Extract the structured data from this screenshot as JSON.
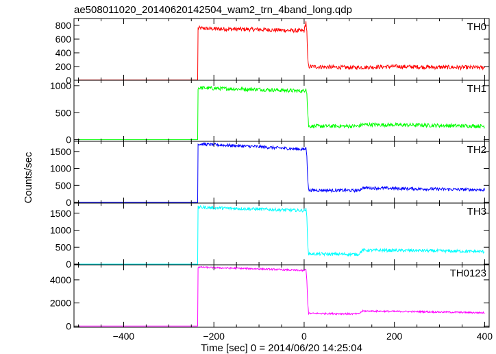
{
  "title": "ae508011020_20140620142504_wam2_trn_4band_long.qdp",
  "chart_data": {
    "type": "line",
    "title": "ae508011020_20140620142504_wam2_trn_4band_long.qdp",
    "xlabel": "Time [sec] 0 = 2014/06/20 14:25:04",
    "ylabel": "Counts/sec",
    "xlim": [
      -510,
      410
    ],
    "xticks": [
      -400,
      -200,
      0,
      200,
      400
    ],
    "x_tick_labels": [
      "−400",
      "−200",
      "0",
      "200",
      "400"
    ],
    "grid": false,
    "panels": [
      {
        "name": "TH0",
        "color": "#ff0000",
        "ylim": [
          0,
          900
        ],
        "yticks": [
          0,
          200,
          400,
          600,
          800
        ],
        "y_tick_labels": [
          "0",
          "200",
          "400",
          "600",
          "800"
        ],
        "series_points": [
          {
            "x": -500,
            "y": 5
          },
          {
            "x": -240,
            "y": 5
          },
          {
            "x": -236,
            "y": 5
          },
          {
            "x": -235,
            "y": 760
          },
          {
            "x": -200,
            "y": 750
          },
          {
            "x": -100,
            "y": 740
          },
          {
            "x": 0,
            "y": 720
          },
          {
            "x": 4,
            "y": 850
          },
          {
            "x": 6,
            "y": 700
          },
          {
            "x": 8,
            "y": 300
          },
          {
            "x": 10,
            "y": 200
          },
          {
            "x": 100,
            "y": 185
          },
          {
            "x": 200,
            "y": 200
          },
          {
            "x": 300,
            "y": 190
          },
          {
            "x": 400,
            "y": 185
          }
        ],
        "noise": 30
      },
      {
        "name": "TH1",
        "color": "#00ff00",
        "ylim": [
          -30,
          1100
        ],
        "yticks": [
          0,
          500,
          1000
        ],
        "y_tick_labels": [
          "0",
          "500",
          "1000"
        ],
        "series_points": [
          {
            "x": -500,
            "y": 0
          },
          {
            "x": -236,
            "y": 0
          },
          {
            "x": -235,
            "y": 960
          },
          {
            "x": -200,
            "y": 950
          },
          {
            "x": -100,
            "y": 930
          },
          {
            "x": 0,
            "y": 900
          },
          {
            "x": 4,
            "y": 960
          },
          {
            "x": 6,
            "y": 850
          },
          {
            "x": 8,
            "y": 500
          },
          {
            "x": 10,
            "y": 250
          },
          {
            "x": 120,
            "y": 250
          },
          {
            "x": 130,
            "y": 280
          },
          {
            "x": 250,
            "y": 270
          },
          {
            "x": 400,
            "y": 250
          }
        ],
        "noise": 35
      },
      {
        "name": "TH2",
        "color": "#0000ff",
        "ylim": [
          -20,
          1800
        ],
        "yticks": [
          0,
          500,
          1000,
          1500
        ],
        "y_tick_labels": [
          "0",
          "500",
          "1000",
          "1500"
        ],
        "series_points": [
          {
            "x": -500,
            "y": 0
          },
          {
            "x": -236,
            "y": 0
          },
          {
            "x": -235,
            "y": 1720
          },
          {
            "x": -200,
            "y": 1700
          },
          {
            "x": -100,
            "y": 1640
          },
          {
            "x": 0,
            "y": 1560
          },
          {
            "x": 4,
            "y": 1600
          },
          {
            "x": 6,
            "y": 1400
          },
          {
            "x": 8,
            "y": 700
          },
          {
            "x": 10,
            "y": 360
          },
          {
            "x": 120,
            "y": 350
          },
          {
            "x": 130,
            "y": 430
          },
          {
            "x": 250,
            "y": 400
          },
          {
            "x": 400,
            "y": 370
          }
        ],
        "noise": 45
      },
      {
        "name": "TH3",
        "color": "#00ffff",
        "ylim": [
          -20,
          1800
        ],
        "yticks": [
          0,
          500,
          1000,
          1500
        ],
        "y_tick_labels": [
          "0",
          "500",
          "1000",
          "1500"
        ],
        "series_points": [
          {
            "x": -500,
            "y": 0
          },
          {
            "x": -236,
            "y": 0
          },
          {
            "x": -235,
            "y": 1680
          },
          {
            "x": -200,
            "y": 1660
          },
          {
            "x": -100,
            "y": 1620
          },
          {
            "x": 0,
            "y": 1580
          },
          {
            "x": 4,
            "y": 1620
          },
          {
            "x": 6,
            "y": 1400
          },
          {
            "x": 8,
            "y": 600
          },
          {
            "x": 10,
            "y": 300
          },
          {
            "x": 120,
            "y": 290
          },
          {
            "x": 130,
            "y": 410
          },
          {
            "x": 250,
            "y": 400
          },
          {
            "x": 400,
            "y": 370
          }
        ],
        "noise": 45
      },
      {
        "name": "TH0123",
        "color": "#ff00ff",
        "ylim": [
          -100,
          5300
        ],
        "yticks": [
          0,
          2000,
          4000
        ],
        "y_tick_labels": [
          "0",
          "2000",
          "4000"
        ],
        "series_points": [
          {
            "x": -500,
            "y": 0
          },
          {
            "x": -236,
            "y": 0
          },
          {
            "x": -235,
            "y": 5100
          },
          {
            "x": -200,
            "y": 5050
          },
          {
            "x": -100,
            "y": 4950
          },
          {
            "x": 0,
            "y": 4800
          },
          {
            "x": 4,
            "y": 4900
          },
          {
            "x": 6,
            "y": 4000
          },
          {
            "x": 8,
            "y": 2000
          },
          {
            "x": 10,
            "y": 1100
          },
          {
            "x": 120,
            "y": 1050
          },
          {
            "x": 130,
            "y": 1300
          },
          {
            "x": 250,
            "y": 1250
          },
          {
            "x": 400,
            "y": 1150
          }
        ],
        "noise": 70
      }
    ]
  }
}
